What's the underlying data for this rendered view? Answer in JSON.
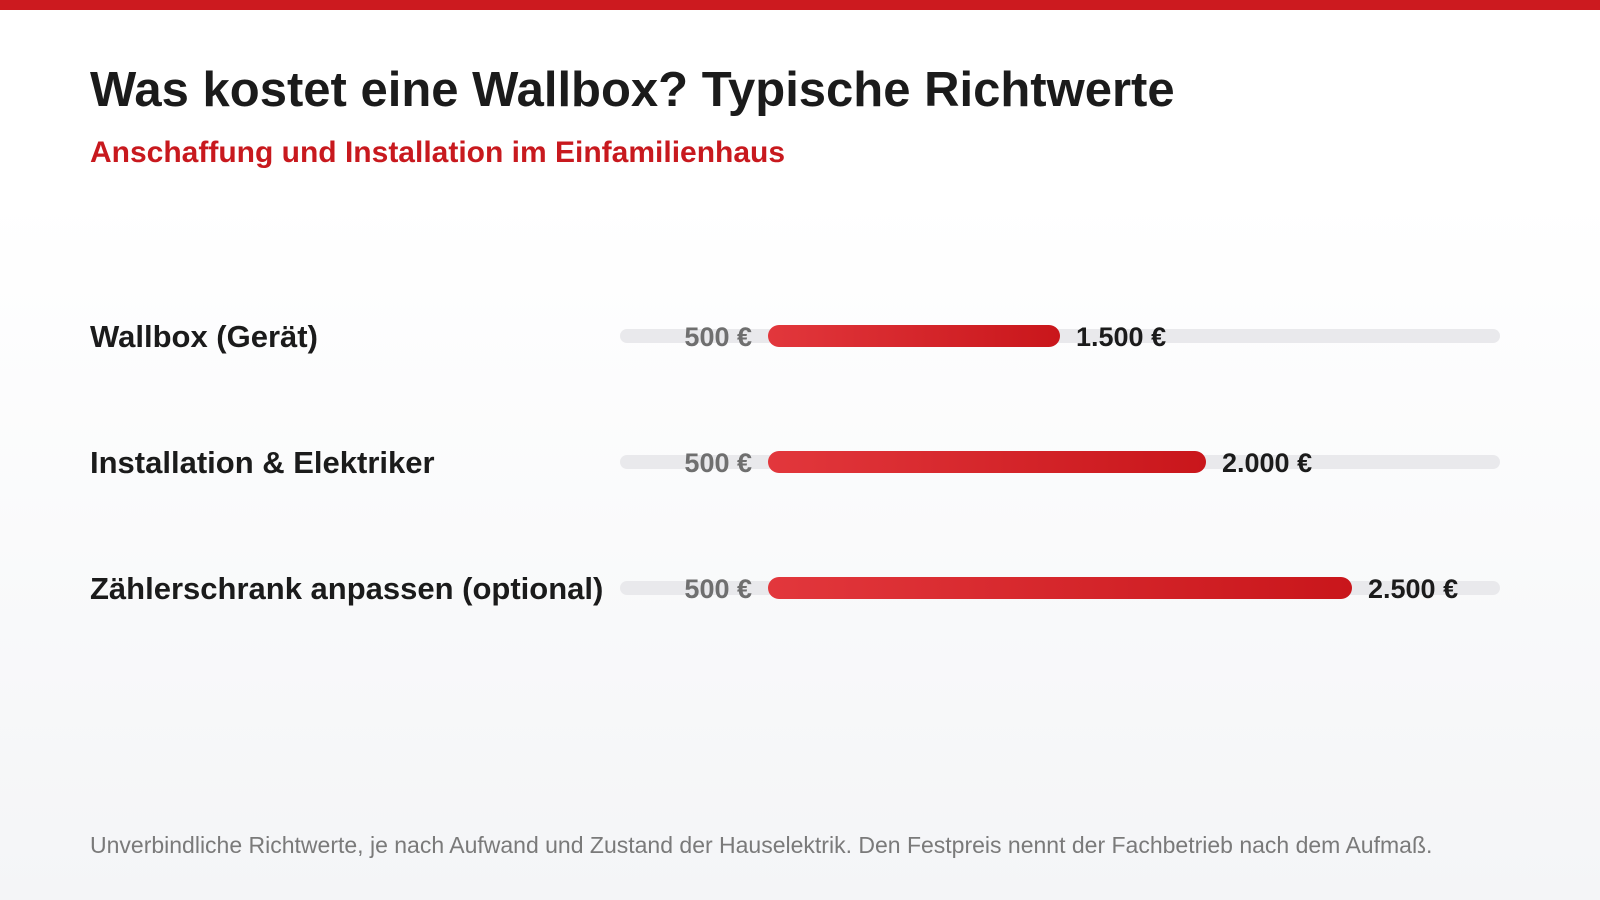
{
  "title": "Was kostet eine Wallbox? Typische Richtwerte",
  "subtitle": "Anschaffung und Installation im Einfamilienhaus",
  "footnote": "Unverbindliche Richtwerte, je nach Aufwand und Zustand der Hauselektrik. Den Festpreis nennt der Fachbetrieb nach dem Aufmaß.",
  "colors": {
    "accent": "#cc1a1f",
    "bar_start": "#e2373c",
    "bar_end": "#c9161b",
    "track": "#e9e9ec",
    "min_label": "#6f6f6f",
    "max_label": "#1b1b1b",
    "category_label": "#1b1b1b"
  },
  "chart_data": {
    "type": "bar",
    "orientation": "horizontal-range",
    "grid": false,
    "xlim": [
      0,
      3000
    ],
    "categories": [
      "Wallbox (Gerät)",
      "Installation & Elektriker",
      "Zählerschrank anpassen (optional)"
    ],
    "series": [
      {
        "ranges": [
          [
            500,
            1500
          ],
          [
            500,
            2000
          ],
          [
            500,
            2500
          ]
        ],
        "min_labels": [
          "500 €",
          "500 €",
          "500 €"
        ],
        "max_labels": [
          "1.500 €",
          "2.000 €",
          "2.500 €"
        ]
      }
    ]
  }
}
